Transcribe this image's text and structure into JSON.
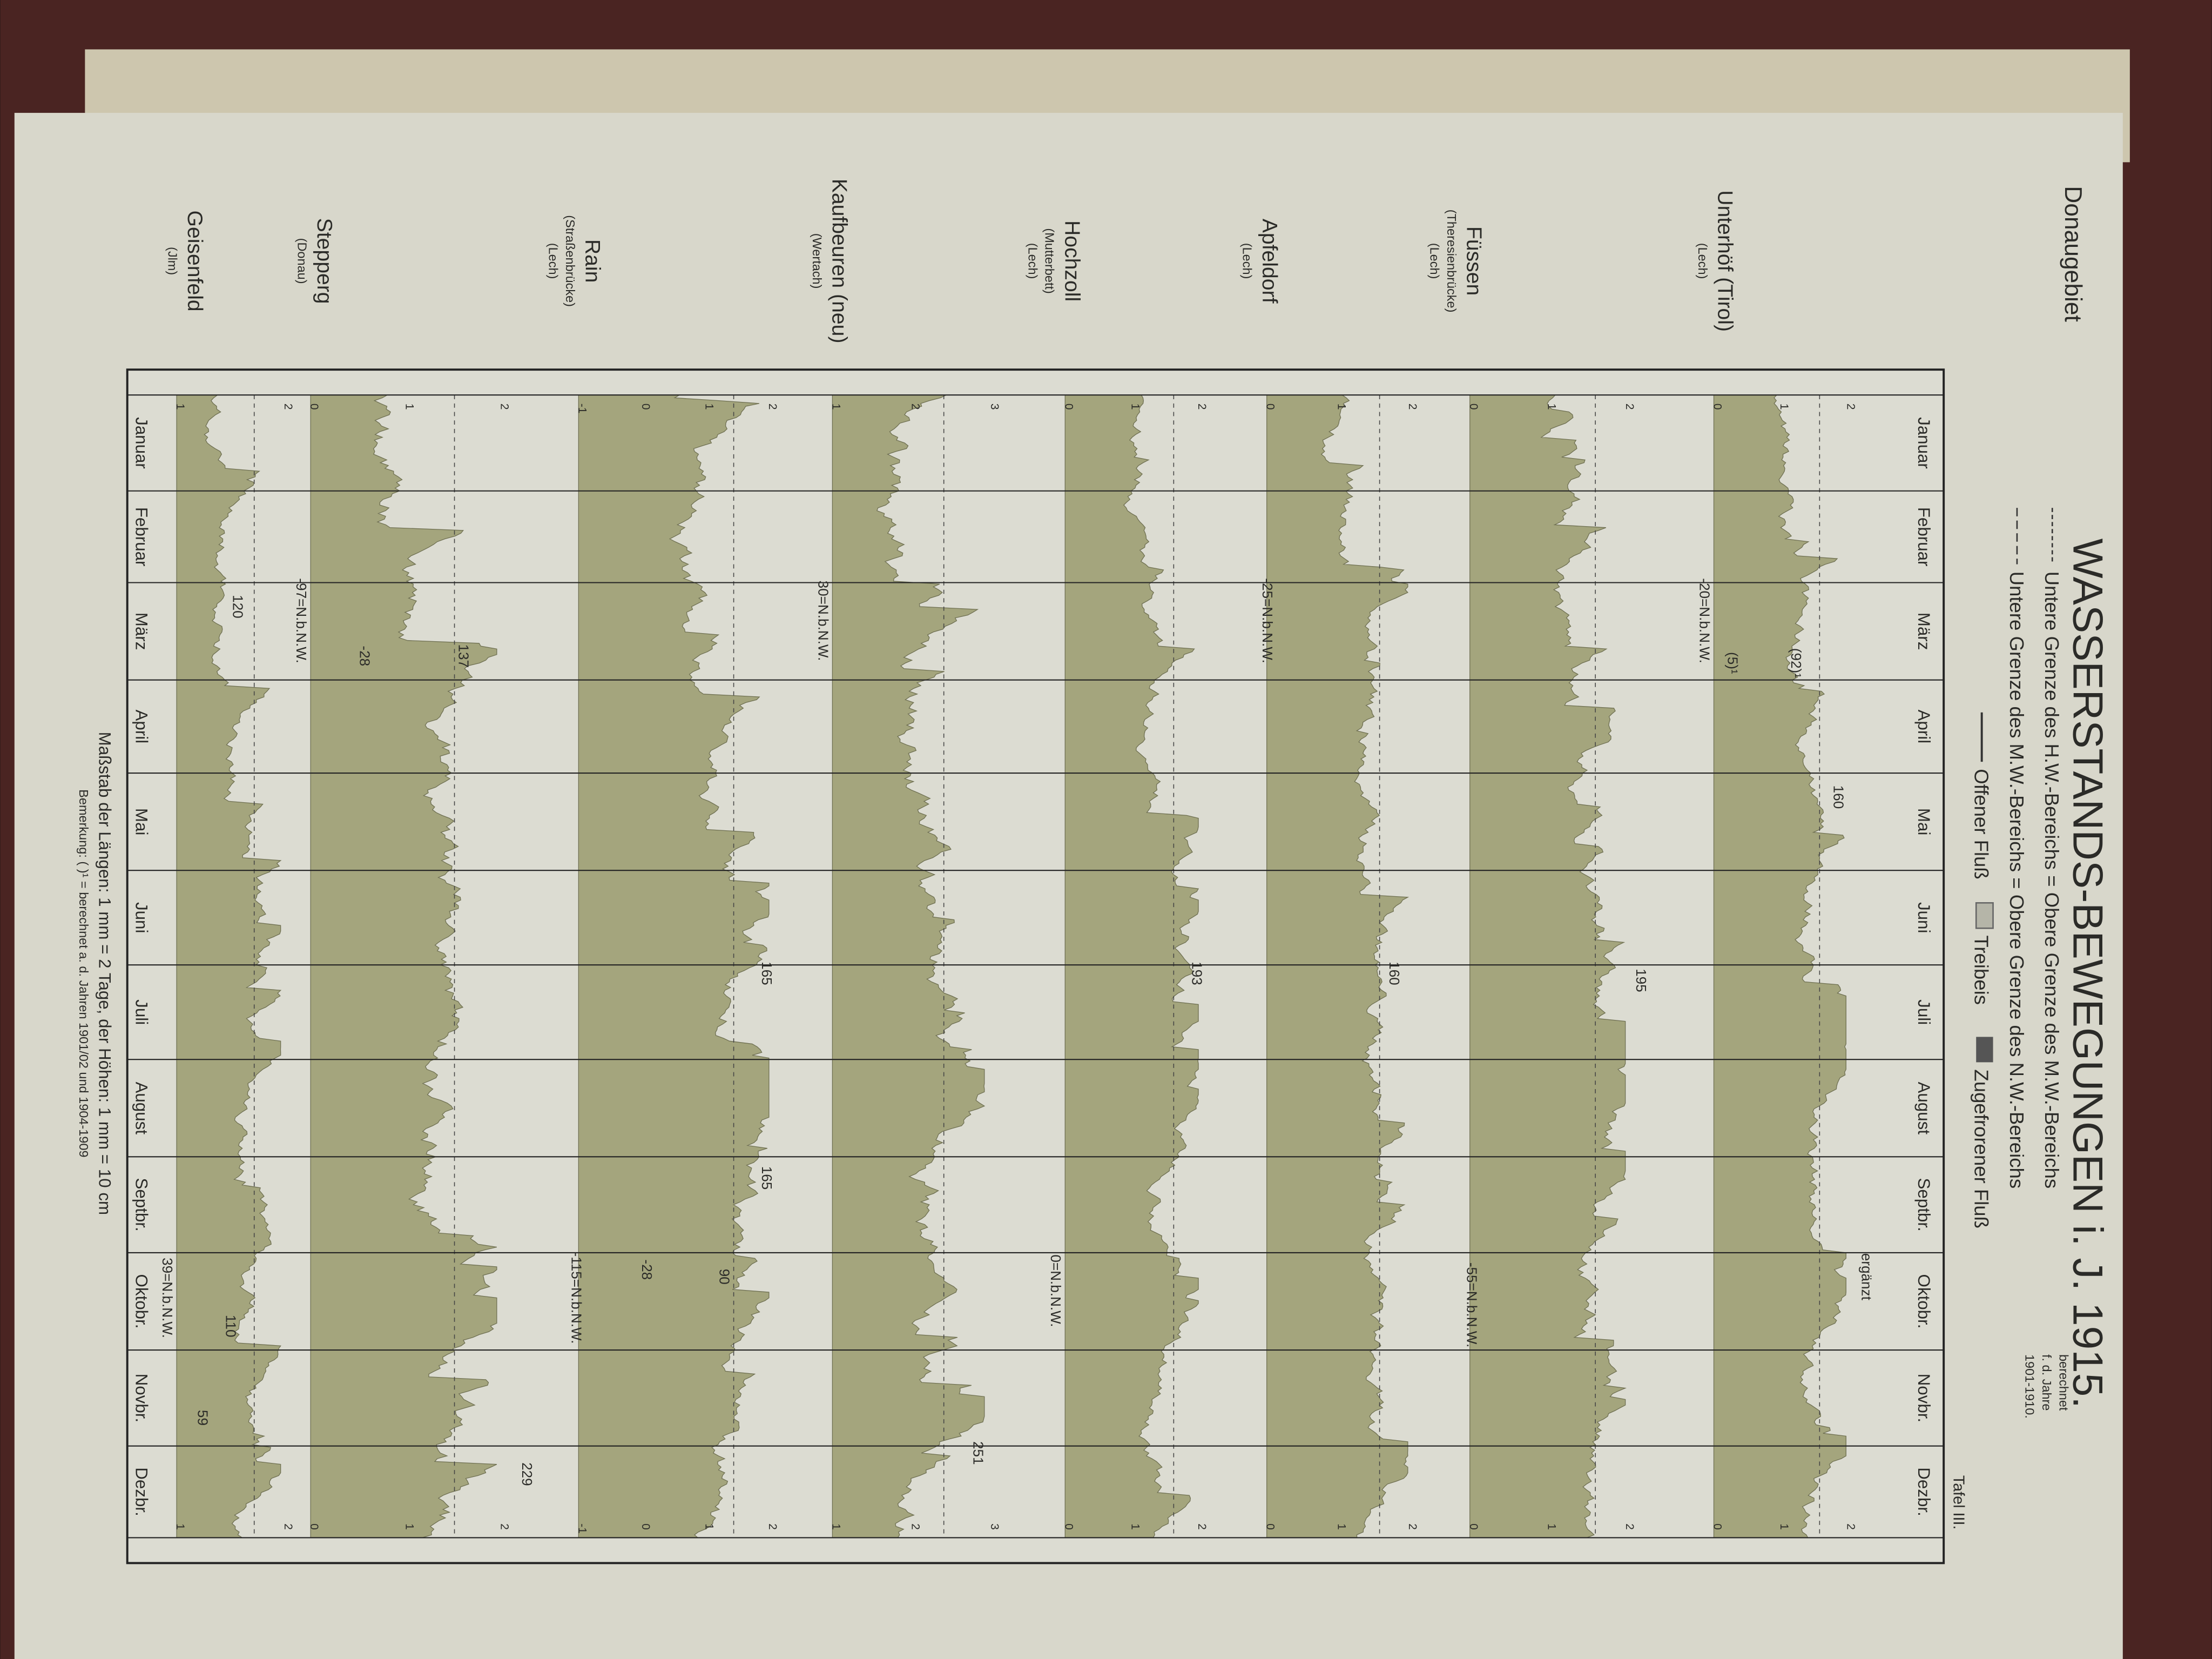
{
  "header": {
    "title": "WASSERSTANDS-BEWEGUNGEN i. J. 1915.",
    "plate": "Tafel III.",
    "region": "Donaugebiet"
  },
  "legend": {
    "lines": [
      "Untere Grenze des H.W.-Bereichs = Obere Grenze des M.W.-Bereichs",
      "Untere Grenze des M.W.-Bereichs = Obere Grenze des N.W.-Bereichs"
    ],
    "note": [
      "berechnet",
      "f. d. Jahre",
      "1901-1910."
    ],
    "items": [
      "Offener Fluß",
      "Treibeis",
      "Zugefrorener Fluß"
    ]
  },
  "months": [
    "Januar",
    "Februar",
    "März",
    "April",
    "Mai",
    "Juni",
    "Juli",
    "August",
    "Septbr.",
    "Oktobr.",
    "Novbr.",
    "Dezbr."
  ],
  "stations": [
    {
      "name": "Unterhöf (Tirol)",
      "river": "(Lech)",
      "ticks": [
        "0",
        "1",
        "2"
      ]
    },
    {
      "name": "Füssen",
      "river": "(Theresienbrücke)",
      "sub": "(Lech)",
      "ticks": [
        "0",
        "1",
        "2"
      ]
    },
    {
      "name": "Apfeldorf",
      "river": "(Lech)",
      "ticks": [
        "0",
        "1",
        "2"
      ]
    },
    {
      "name": "Hochzoll",
      "river": "(Mutterbett)",
      "sub": "(Lech)",
      "ticks": [
        "0",
        "1",
        "2"
      ]
    },
    {
      "name": "Kaufbeuren (neu)",
      "river": "(Wertach)",
      "ticks": [
        "1",
        "2",
        "3"
      ]
    },
    {
      "name": "Rain",
      "river": "(Straßenbrücke)",
      "sub": "(Lech)",
      "ticks": [
        "-1",
        "0",
        "1",
        "2"
      ]
    },
    {
      "name": "Stepperg",
      "river": "(Donau)",
      "ticks": [
        "0",
        "1",
        "2"
      ]
    },
    {
      "name": "Geisenfeld",
      "river": "(Jlm)",
      "ticks": [
        "1",
        "2"
      ]
    }
  ],
  "annotations": [
    "-20=N.b.N.W.",
    "(92)¹",
    "(5)¹",
    "160",
    "195",
    "-55=N.b.N.W.",
    "ergänzt",
    "-25=N.b.N.W.",
    "160",
    "193",
    "0=N.b.N.W.",
    "30=N.b.N.W.",
    "165",
    "165",
    "251",
    "-115=N.b.N.W.",
    "-28",
    "90",
    "-97=N.b.N.W.",
    "-28",
    "137",
    "229",
    "120",
    "39=N.b.N.W.",
    "110",
    "59"
  ],
  "footer": {
    "scale": "Maßstab der Längen: 1 mm = 2 Tage, der Höhen: 1 mm = 10 cm",
    "remark": "Bemerkung: ( )¹ = berechnet a. d. Jahren 1901/02 und 1904-1909"
  }
}
